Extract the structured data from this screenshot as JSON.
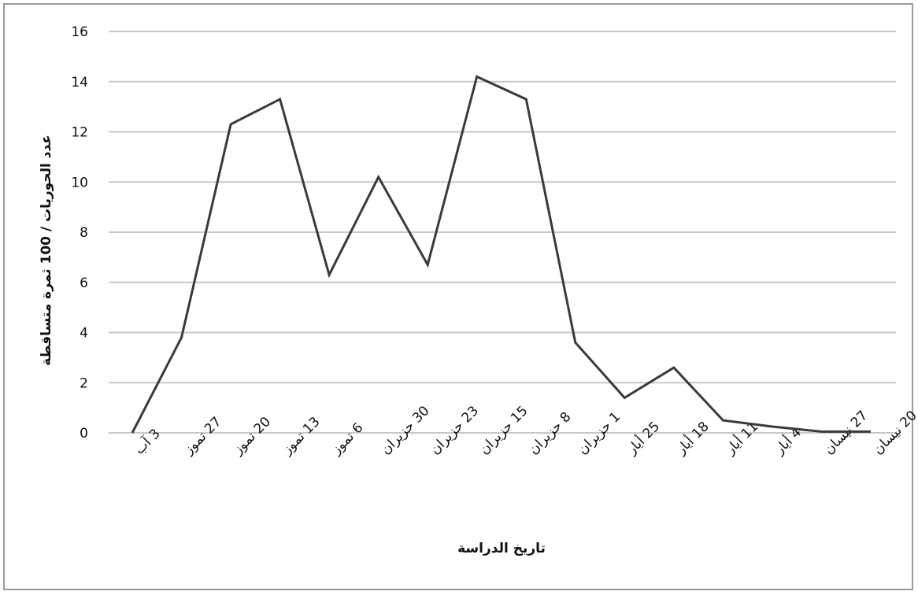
{
  "chart_data": {
    "type": "line",
    "title": "",
    "xlabel": "تاريخ الدراسة",
    "ylabel": "عدد الحوريات / 100 ثمرة متساقطة",
    "ylim": [
      0,
      16
    ],
    "yticks": [
      0,
      2,
      4,
      6,
      8,
      10,
      12,
      14,
      16
    ],
    "grid": true,
    "legend": "none",
    "categories": [
      "3 آب",
      "27 تموز",
      "20 تموز",
      "13 تموز",
      "6 تموز",
      "30 حزيران",
      "23 حزيران",
      "15 حزيران",
      "8 حزيران",
      "1 حزيران",
      "25 أيار",
      "18 أيار",
      "11 أيار",
      "4 أيار",
      "27 نيسان",
      "20 نيسان"
    ],
    "series": [
      {
        "values": [
          0,
          3.8,
          12.3,
          13.3,
          6.3,
          10.2,
          6.7,
          14.2,
          13.3,
          3.6,
          1.4,
          2.6,
          0.5,
          0.25,
          0.05,
          0.05
        ]
      }
    ],
    "colors": {
      "line": "#3a3a3a",
      "grid": "#c8c8c8"
    }
  }
}
